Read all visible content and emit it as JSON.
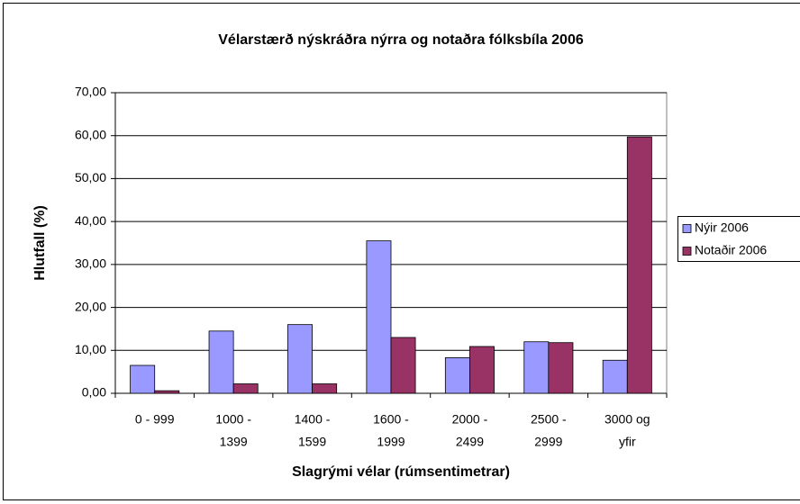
{
  "chart_data": {
    "type": "bar",
    "title": "Vélarstærð nýskráðra nýrra og notaðra fólksbíla 2006",
    "x_label": "Slagrými vélar (rúmsentimetrar)",
    "y_label": "Hlutfall (%)",
    "categories": [
      [
        "0 - 999"
      ],
      [
        "1000 -",
        "1399"
      ],
      [
        "1400 -",
        "1599"
      ],
      [
        "1600 -",
        "1999"
      ],
      [
        "2000 -",
        "2499"
      ],
      [
        "2500 -",
        "2999"
      ],
      [
        "3000 og",
        "yfir"
      ]
    ],
    "series": [
      {
        "name": "Nýir 2006",
        "color": "#9999ff",
        "values": [
          6.5,
          14.5,
          16.0,
          35.5,
          8.3,
          12.0,
          7.7
        ]
      },
      {
        "name": "Notaðir 2006",
        "color": "#993366",
        "values": [
          0.6,
          2.2,
          2.2,
          13.0,
          10.9,
          11.8,
          59.7
        ]
      }
    ],
    "ylim": [
      0,
      70
    ],
    "yticks": [
      {
        "value": 0,
        "label": "0,00"
      },
      {
        "value": 10,
        "label": "10,00"
      },
      {
        "value": 20,
        "label": "20,00"
      },
      {
        "value": 30,
        "label": "30,00"
      },
      {
        "value": 40,
        "label": "40,00"
      },
      {
        "value": 50,
        "label": "50,00"
      },
      {
        "value": 60,
        "label": "60,00"
      },
      {
        "value": 70,
        "label": "70,00"
      }
    ],
    "grid": true,
    "legend": "right"
  }
}
